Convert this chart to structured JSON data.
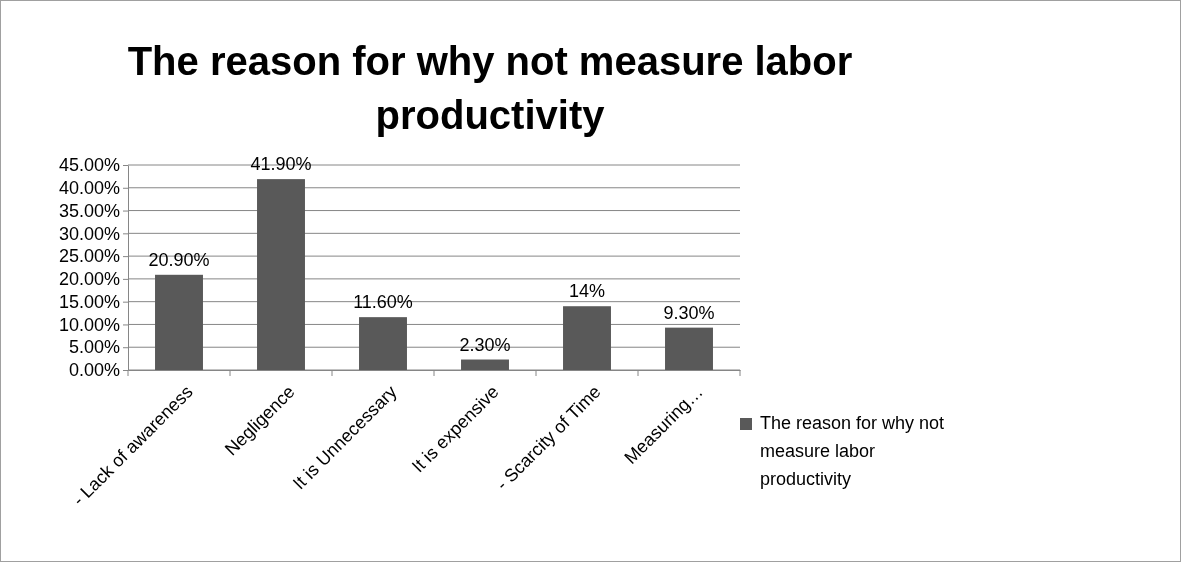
{
  "chart_data": {
    "type": "bar",
    "title": "The reason for why not measure labor productivity",
    "categories": [
      "- Lack of awareness",
      "Negligence",
      "It is Unnecessary",
      "It is expensive",
      "- Scarcity of Time",
      "Measuring…"
    ],
    "series": [
      {
        "name": "The reason for why not measure labor productivity",
        "color": "#595959",
        "values": [
          20.9,
          41.9,
          11.6,
          2.3,
          14,
          9.3
        ],
        "value_labels": [
          "20.90%",
          "41.90%",
          "11.60%",
          "2.30%",
          "14%",
          "9.30%"
        ]
      }
    ],
    "ylim": [
      0,
      45
    ],
    "yticks": [
      {
        "value": 0,
        "label": "0.00%"
      },
      {
        "value": 5,
        "label": "5.00%"
      },
      {
        "value": 10,
        "label": "10.00%"
      },
      {
        "value": 15,
        "label": "15.00%"
      },
      {
        "value": 20,
        "label": "20.00%"
      },
      {
        "value": 25,
        "label": "25.00%"
      },
      {
        "value": 30,
        "label": "30.00%"
      },
      {
        "value": 35,
        "label": "35.00%"
      },
      {
        "value": 40,
        "label": "40.00%"
      },
      {
        "value": 45,
        "label": "45.00%"
      }
    ],
    "grid": "y",
    "legend": "right"
  }
}
